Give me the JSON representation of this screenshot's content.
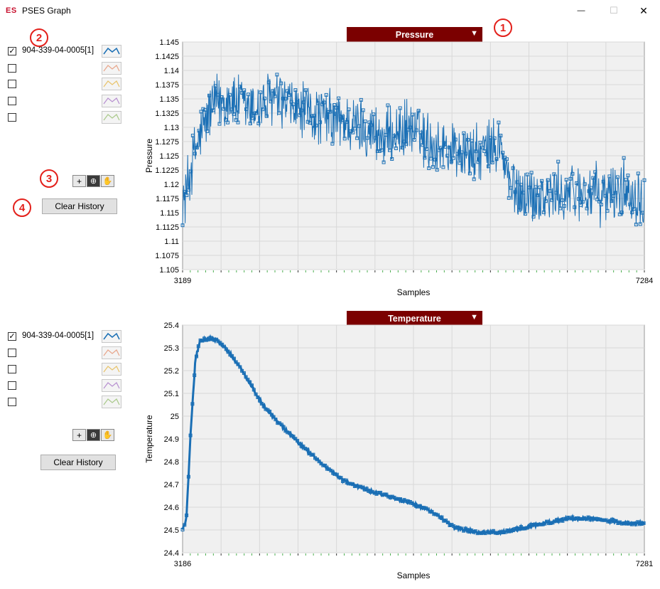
{
  "window": {
    "icon_text": "ES",
    "title": "PSES Graph",
    "min_symbol": "—",
    "max_symbol": "☐",
    "close_symbol": "✕"
  },
  "annotations": [
    "1",
    "2",
    "3",
    "4"
  ],
  "graphs": [
    {
      "channel_selector": "Pressure",
      "legend": [
        {
          "checked": true,
          "label": "904-339-04-0005[1]",
          "color": "#1a6fb5"
        },
        {
          "checked": false,
          "label": "",
          "color": "#e8a58a"
        },
        {
          "checked": false,
          "label": "",
          "color": "#e8c36a"
        },
        {
          "checked": false,
          "label": "",
          "color": "#b78fd0"
        },
        {
          "checked": false,
          "label": "",
          "color": "#a9c98a"
        }
      ],
      "clear_label": "Clear History"
    },
    {
      "channel_selector": "Temperature",
      "legend": [
        {
          "checked": true,
          "label": "904-339-04-0005[1]",
          "color": "#1a6fb5"
        },
        {
          "checked": false,
          "label": "",
          "color": "#e8a58a"
        },
        {
          "checked": false,
          "label": "",
          "color": "#e8c36a"
        },
        {
          "checked": false,
          "label": "",
          "color": "#b78fd0"
        },
        {
          "checked": false,
          "label": "",
          "color": "#a9c98a"
        }
      ],
      "clear_label": "Clear History"
    }
  ],
  "chart_data": [
    {
      "type": "line",
      "title": "Pressure",
      "xlabel": "Samples",
      "ylabel": "Pressure",
      "xlim": [
        3189,
        7284
      ],
      "ylim": [
        1.105,
        1.145
      ],
      "ytick_labels": [
        "1.145",
        "1.1425",
        "1.14",
        "1.1375",
        "1.135",
        "1.1325",
        "1.13",
        "1.1275",
        "1.125",
        "1.1225",
        "1.12",
        "1.1175",
        "1.115",
        "1.1125",
        "1.11",
        "1.1075",
        "1.105"
      ],
      "xtick_labels": [
        "3189",
        "7284"
      ],
      "grid": true,
      "color": "#1a6fb5",
      "series": [
        {
          "x": [
            3189,
            3300,
            3450,
            3600,
            3800,
            4000,
            4200,
            4400,
            4600,
            4800,
            5000,
            5200,
            5400,
            5600,
            5800,
            6000,
            6100,
            6300,
            6500,
            6700,
            6900,
            7100,
            7284
          ],
          "values": [
            1.116,
            1.126,
            1.134,
            1.135,
            1.133,
            1.135,
            1.133,
            1.132,
            1.131,
            1.13,
            1.128,
            1.13,
            1.127,
            1.126,
            1.125,
            1.127,
            1.119,
            1.118,
            1.118,
            1.119,
            1.118,
            1.119,
            1.118
          ],
          "noise_band": 0.006
        }
      ]
    },
    {
      "type": "line",
      "title": "Temperature",
      "xlabel": "Samples",
      "ylabel": "Temperature",
      "xlim": [
        3186,
        7281
      ],
      "ylim": [
        24.4,
        25.4
      ],
      "ytick_labels": [
        "25.4",
        "25.3",
        "25.2",
        "25.1",
        "25",
        "24.9",
        "24.8",
        "24.7",
        "24.6",
        "24.5",
        "24.4"
      ],
      "xtick_labels": [
        "3186",
        "7281"
      ],
      "grid": true,
      "color": "#1a6fb5",
      "series": [
        {
          "x": [
            3186,
            3220,
            3260,
            3300,
            3340,
            3400,
            3450,
            3500,
            3600,
            3700,
            3800,
            3900,
            4000,
            4100,
            4200,
            4400,
            4600,
            4800,
            5000,
            5200,
            5400,
            5600,
            5800,
            6000,
            6200,
            6400,
            6600,
            6800,
            7000,
            7100,
            7281
          ],
          "values": [
            24.5,
            24.55,
            24.95,
            25.25,
            25.33,
            25.34,
            25.34,
            25.33,
            25.28,
            25.21,
            25.13,
            25.05,
            24.99,
            24.94,
            24.89,
            24.8,
            24.72,
            24.68,
            24.65,
            24.62,
            24.58,
            24.51,
            24.49,
            24.49,
            24.51,
            24.53,
            24.55,
            24.55,
            24.54,
            24.53,
            24.53
          ]
        }
      ]
    }
  ]
}
